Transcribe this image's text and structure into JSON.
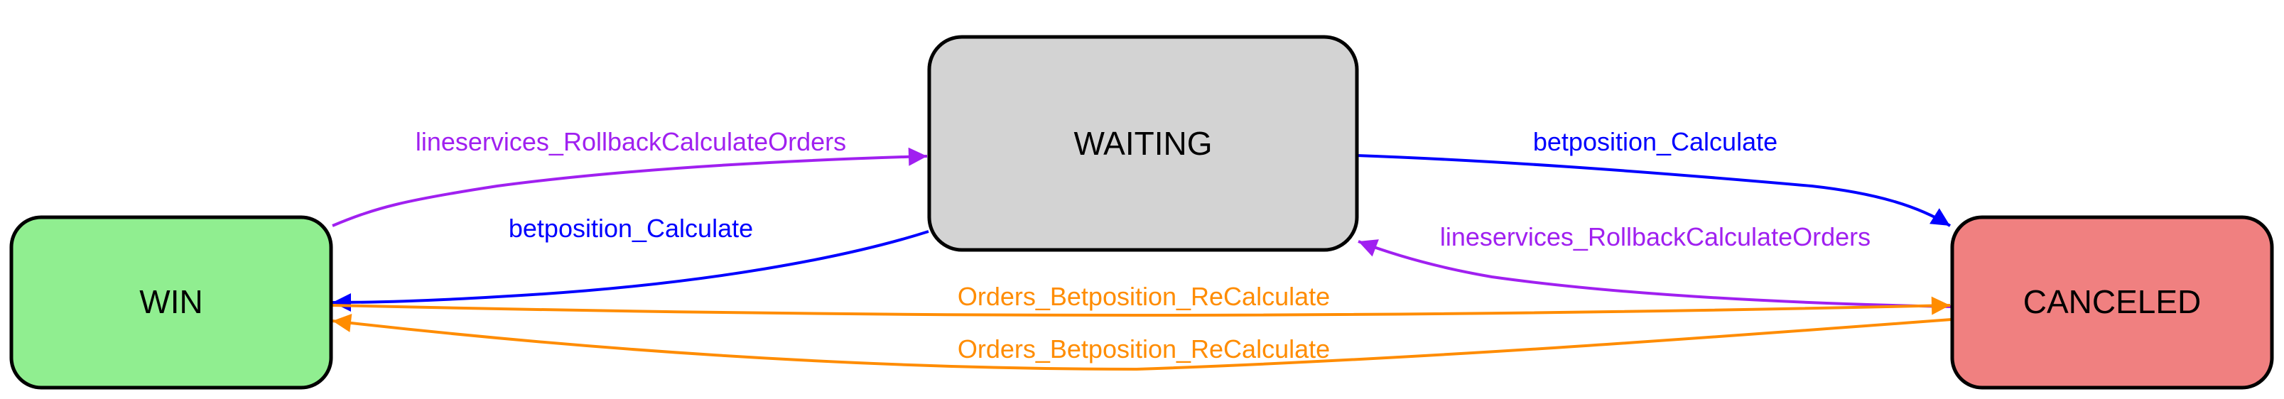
{
  "nodes": {
    "win": {
      "label": "WIN",
      "fill": "#90ee90"
    },
    "waiting": {
      "label": "WAITING",
      "fill": "#d3d3d3"
    },
    "canceled": {
      "label": "CANCELED",
      "fill": "#f08080"
    }
  },
  "edges": {
    "win_to_waiting": {
      "from": "WIN",
      "to": "WAITING",
      "label": "lineservices_RollbackCalculateOrders",
      "color": "#a020f0"
    },
    "waiting_to_win": {
      "from": "WAITING",
      "to": "WIN",
      "label": "betposition_Calculate",
      "color": "#0000ff"
    },
    "waiting_to_canceled": {
      "from": "WAITING",
      "to": "CANCELED",
      "label": "betposition_Calculate",
      "color": "#0000ff"
    },
    "canceled_to_waiting": {
      "from": "CANCELED",
      "to": "WAITING",
      "label": "lineservices_RollbackCalculateOrders",
      "color": "#a020f0"
    },
    "win_to_canceled": {
      "from": "WIN",
      "to": "CANCELED",
      "label": "Orders_Betposition_ReCalculate",
      "color": "#ff8c00"
    },
    "canceled_to_win": {
      "from": "CANCELED",
      "to": "WIN",
      "label": "Orders_Betposition_ReCalculate",
      "color": "#ff8c00"
    }
  }
}
